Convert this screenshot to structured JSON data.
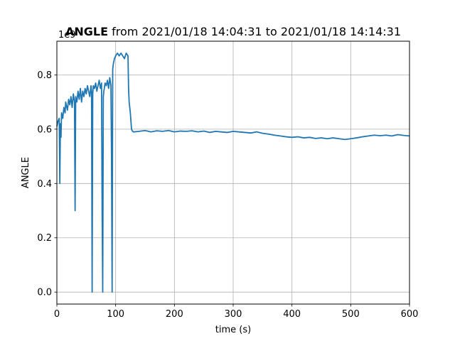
{
  "chart_data": {
    "type": "line",
    "title_bold": "ANGLE",
    "title_rest": " from 2021/01/18 14:04:31 to 2021/01/18 14:14:31",
    "xlabel": "time (s)",
    "ylabel": "ANGLE",
    "y_offset_text": "1e9",
    "xlim": [
      0,
      600
    ],
    "ylim": [
      -0.044,
      0.924
    ],
    "y_scale_exponent": 9,
    "xticks": [
      0,
      100,
      200,
      300,
      400,
      500,
      600
    ],
    "xtick_labels": [
      "0",
      "100",
      "200",
      "300",
      "400",
      "500",
      "600"
    ],
    "yticks": [
      0.0,
      0.2,
      0.4,
      0.6,
      0.8
    ],
    "ytick_labels": [
      "0.0",
      "0.2",
      "0.4",
      "0.6",
      "0.8"
    ],
    "grid": true,
    "legend": "none",
    "series": [
      {
        "color": "#1f77b4",
        "x": [
          0,
          2,
          4,
          5,
          6,
          7,
          8,
          10,
          12,
          14,
          15,
          16,
          18,
          20,
          22,
          24,
          26,
          28,
          30,
          31,
          32,
          34,
          36,
          38,
          40,
          42,
          44,
          46,
          48,
          50,
          52,
          54,
          56,
          58,
          59,
          60,
          61,
          62,
          64,
          66,
          68,
          70,
          72,
          74,
          76,
          77,
          78,
          79,
          80,
          82,
          84,
          86,
          88,
          90,
          92,
          93,
          94,
          95,
          96,
          98,
          100,
          103,
          106,
          109,
          112,
          115,
          118,
          121,
          122,
          123,
          124,
          125,
          126,
          127,
          128,
          130,
          140,
          150,
          160,
          170,
          180,
          190,
          200,
          210,
          220,
          230,
          240,
          250,
          260,
          270,
          280,
          290,
          300,
          310,
          320,
          330,
          340,
          350,
          360,
          370,
          380,
          390,
          400,
          410,
          420,
          430,
          440,
          450,
          460,
          470,
          480,
          490,
          500,
          510,
          520,
          530,
          540,
          550,
          560,
          570,
          580,
          590,
          600
        ],
        "y": [
          0.61,
          0.63,
          0.64,
          0.4,
          0.62,
          0.57,
          0.66,
          0.64,
          0.68,
          0.66,
          0.7,
          0.69,
          0.67,
          0.71,
          0.69,
          0.72,
          0.68,
          0.73,
          0.7,
          0.3,
          0.72,
          0.7,
          0.74,
          0.71,
          0.75,
          0.7,
          0.74,
          0.72,
          0.75,
          0.73,
          0.76,
          0.74,
          0.72,
          0.76,
          0.74,
          0.0,
          0.73,
          0.76,
          0.75,
          0.77,
          0.74,
          0.76,
          0.78,
          0.75,
          0.77,
          0.3,
          0.0,
          0.72,
          0.74,
          0.77,
          0.76,
          0.78,
          0.75,
          0.79,
          0.76,
          0.5,
          0.0,
          0.82,
          0.84,
          0.86,
          0.87,
          0.88,
          0.87,
          0.88,
          0.87,
          0.86,
          0.88,
          0.87,
          0.75,
          0.7,
          0.68,
          0.66,
          0.63,
          0.6,
          0.595,
          0.59,
          0.592,
          0.595,
          0.59,
          0.594,
          0.592,
          0.595,
          0.59,
          0.593,
          0.592,
          0.594,
          0.59,
          0.593,
          0.588,
          0.592,
          0.59,
          0.588,
          0.592,
          0.59,
          0.588,
          0.586,
          0.59,
          0.585,
          0.582,
          0.578,
          0.575,
          0.572,
          0.57,
          0.572,
          0.568,
          0.57,
          0.566,
          0.568,
          0.565,
          0.568,
          0.565,
          0.562,
          0.565,
          0.568,
          0.572,
          0.575,
          0.578,
          0.576,
          0.578,
          0.575,
          0.58,
          0.577,
          0.575
        ]
      }
    ]
  }
}
